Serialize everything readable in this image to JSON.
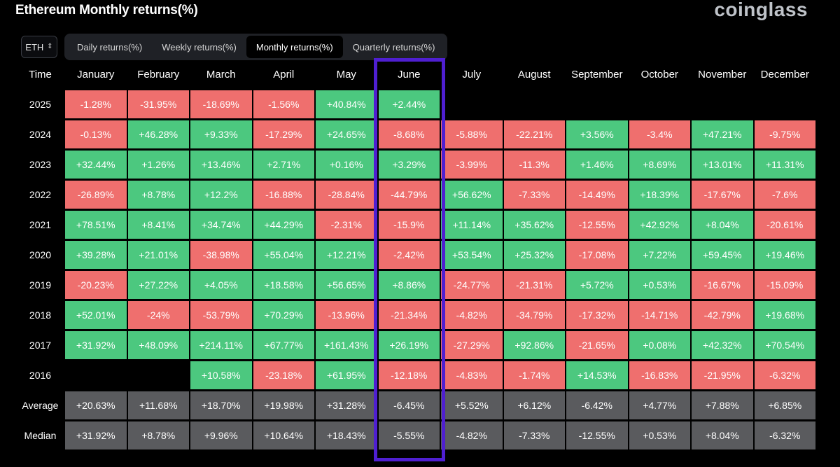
{
  "title": "Ethereum Monthly returns(%)",
  "logo": "coinglass",
  "asset_select": {
    "value": "ETH",
    "icon": "chevron-updown-icon"
  },
  "tabs": [
    {
      "label": "Daily returns(%)",
      "active": false
    },
    {
      "label": "Weekly returns(%)",
      "active": false
    },
    {
      "label": "Monthly returns(%)",
      "active": true
    },
    {
      "label": "Quarterly returns(%)",
      "active": false
    }
  ],
  "colors": {
    "positive": "#4cc87f",
    "negative": "#ef6f6e",
    "stat": "#5a5b5e",
    "highlight": "#4f1fd1"
  },
  "table": {
    "header": "Time",
    "columns": [
      "January",
      "February",
      "March",
      "April",
      "May",
      "June",
      "July",
      "August",
      "September",
      "October",
      "November",
      "December"
    ],
    "rows": [
      {
        "label": "2025",
        "values": [
          "-1.28%",
          "-31.95%",
          "-18.69%",
          "-1.56%",
          "+40.84%",
          "+2.44%",
          "",
          "",
          "",
          "",
          "",
          ""
        ]
      },
      {
        "label": "2024",
        "values": [
          "-0.13%",
          "+46.28%",
          "+9.33%",
          "-17.29%",
          "+24.65%",
          "-8.68%",
          "-5.88%",
          "-22.21%",
          "+3.56%",
          "-3.4%",
          "+47.21%",
          "-9.75%"
        ]
      },
      {
        "label": "2023",
        "values": [
          "+32.44%",
          "+1.26%",
          "+13.46%",
          "+2.71%",
          "+0.16%",
          "+3.29%",
          "-3.99%",
          "-11.3%",
          "+1.46%",
          "+8.69%",
          "+13.01%",
          "+11.31%"
        ]
      },
      {
        "label": "2022",
        "values": [
          "-26.89%",
          "+8.78%",
          "+12.2%",
          "-16.88%",
          "-28.84%",
          "-44.79%",
          "+56.62%",
          "-7.33%",
          "-14.49%",
          "+18.39%",
          "-17.67%",
          "-7.6%"
        ]
      },
      {
        "label": "2021",
        "values": [
          "+78.51%",
          "+8.41%",
          "+34.74%",
          "+44.29%",
          "-2.31%",
          "-15.9%",
          "+11.14%",
          "+35.62%",
          "-12.55%",
          "+42.92%",
          "+8.04%",
          "-20.61%"
        ]
      },
      {
        "label": "2020",
        "values": [
          "+39.28%",
          "+21.01%",
          "-38.98%",
          "+55.04%",
          "+12.21%",
          "-2.42%",
          "+53.54%",
          "+25.32%",
          "-17.08%",
          "+7.22%",
          "+59.45%",
          "+19.46%"
        ]
      },
      {
        "label": "2019",
        "values": [
          "-20.23%",
          "+27.22%",
          "+4.05%",
          "+18.58%",
          "+56.65%",
          "+8.86%",
          "-24.77%",
          "-21.31%",
          "+5.72%",
          "+0.53%",
          "-16.67%",
          "-15.09%"
        ]
      },
      {
        "label": "2018",
        "values": [
          "+52.01%",
          "-24%",
          "-53.79%",
          "+70.29%",
          "-13.96%",
          "-21.34%",
          "-4.82%",
          "-34.79%",
          "-17.32%",
          "-14.71%",
          "-42.79%",
          "+19.68%"
        ]
      },
      {
        "label": "2017",
        "values": [
          "+31.92%",
          "+48.09%",
          "+214.11%",
          "+67.77%",
          "+161.43%",
          "+26.19%",
          "-27.29%",
          "+92.86%",
          "-21.65%",
          "+0.08%",
          "+42.32%",
          "+70.54%"
        ]
      },
      {
        "label": "2016",
        "values": [
          "",
          "",
          "+10.58%",
          "-23.18%",
          "+61.95%",
          "-12.18%",
          "-4.83%",
          "-1.74%",
          "+14.53%",
          "-16.83%",
          "-21.95%",
          "-6.32%"
        ]
      }
    ],
    "stats": [
      {
        "label": "Average",
        "values": [
          "+20.63%",
          "+11.68%",
          "+18.70%",
          "+19.98%",
          "+31.28%",
          "-6.45%",
          "+5.52%",
          "+6.12%",
          "-6.42%",
          "+4.77%",
          "+7.88%",
          "+6.85%"
        ]
      },
      {
        "label": "Median",
        "values": [
          "+31.92%",
          "+8.78%",
          "+9.96%",
          "+10.64%",
          "+18.43%",
          "-5.55%",
          "-4.82%",
          "-7.33%",
          "-12.55%",
          "+0.53%",
          "+8.04%",
          "-6.32%"
        ]
      }
    ]
  }
}
